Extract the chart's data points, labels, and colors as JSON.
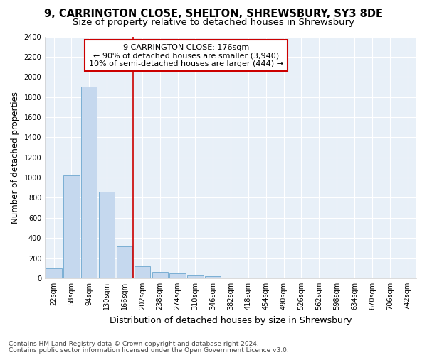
{
  "title1": "9, CARRINGTON CLOSE, SHELTON, SHREWSBURY, SY3 8DE",
  "title2": "Size of property relative to detached houses in Shrewsbury",
  "xlabel": "Distribution of detached houses by size in Shrewsbury",
  "ylabel": "Number of detached properties",
  "categories": [
    "22sqm",
    "58sqm",
    "94sqm",
    "130sqm",
    "166sqm",
    "202sqm",
    "238sqm",
    "274sqm",
    "310sqm",
    "346sqm",
    "382sqm",
    "418sqm",
    "454sqm",
    "490sqm",
    "526sqm",
    "562sqm",
    "598sqm",
    "634sqm",
    "670sqm",
    "706sqm",
    "742sqm"
  ],
  "values": [
    95,
    1020,
    1900,
    860,
    320,
    120,
    60,
    50,
    30,
    20,
    0,
    0,
    0,
    0,
    0,
    0,
    0,
    0,
    0,
    0,
    0
  ],
  "bar_color": "#c5d8ee",
  "bar_edgecolor": "#7bafd4",
  "ylim": [
    0,
    2400
  ],
  "yticks": [
    0,
    200,
    400,
    600,
    800,
    1000,
    1200,
    1400,
    1600,
    1800,
    2000,
    2200,
    2400
  ],
  "annotation_box_text": "9 CARRINGTON CLOSE: 176sqm\n← 90% of detached houses are smaller (3,940)\n10% of semi-detached houses are larger (444) →",
  "vline_x_index": 4.5,
  "vline_color": "#cc0000",
  "footnote1": "Contains HM Land Registry data © Crown copyright and database right 2024.",
  "footnote2": "Contains public sector information licensed under the Open Government Licence v3.0.",
  "fig_bg_color": "#ffffff",
  "plot_bg_color": "#e8f0f8",
  "grid_color": "#ffffff",
  "title_fontsize": 10.5,
  "subtitle_fontsize": 9.5,
  "tick_fontsize": 7,
  "ylabel_fontsize": 8.5,
  "xlabel_fontsize": 9,
  "annotation_fontsize": 8,
  "footnote_fontsize": 6.5
}
